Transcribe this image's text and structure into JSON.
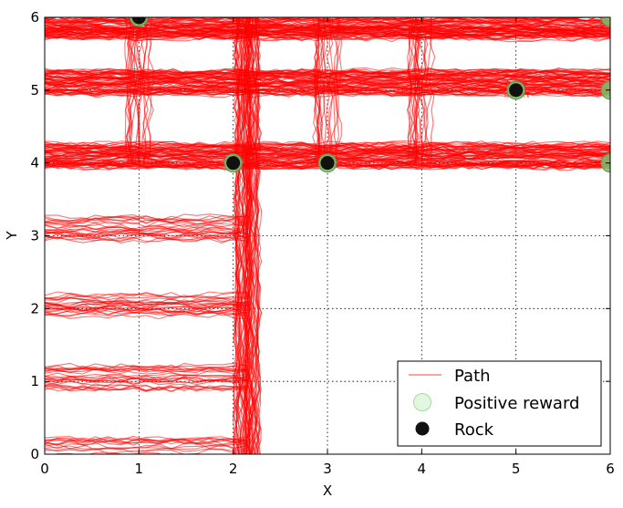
{
  "chart_data": {
    "type": "scatter",
    "title": "",
    "xlabel": "X",
    "ylabel": "Y",
    "xlim": [
      0,
      6
    ],
    "ylim": [
      0,
      6
    ],
    "xticks": [
      "0",
      "1",
      "2",
      "3",
      "4",
      "5",
      "6"
    ],
    "yticks": [
      "0",
      "1",
      "2",
      "3",
      "4",
      "5",
      "6"
    ],
    "grid": true,
    "legend_position": "bottom-right",
    "series": [
      {
        "name": "Path",
        "kind": "line",
        "color": "#ff0000",
        "segments": [
          [
            [
              0,
              5.85
            ],
            [
              6,
              5.85
            ]
          ],
          [
            [
              0,
              5.1
            ],
            [
              6,
              5.1
            ]
          ],
          [
            [
              0,
              4.1
            ],
            [
              6,
              4.1
            ]
          ],
          [
            [
              0,
              3.1
            ],
            [
              2.15,
              3.1
            ]
          ],
          [
            [
              0,
              2.05
            ],
            [
              2.15,
              2.05
            ]
          ],
          [
            [
              0,
              1.05
            ],
            [
              2.15,
              1.05
            ]
          ],
          [
            [
              0,
              0.05
            ],
            [
              2.15,
              0.05
            ]
          ],
          [
            [
              1.0,
              6
            ],
            [
              1.0,
              4
            ]
          ],
          [
            [
              2.15,
              6
            ],
            [
              2.15,
              0
            ]
          ],
          [
            [
              3.0,
              6
            ],
            [
              3.0,
              4
            ]
          ],
          [
            [
              4.0,
              6
            ],
            [
              4.0,
              4
            ]
          ],
          [
            [
              5.0,
              5.1
            ],
            [
              5.0,
              4.9
            ]
          ]
        ]
      },
      {
        "name": "Positive reward",
        "kind": "marker",
        "color": "#7bbf6a",
        "points": [
          [
            6,
            6
          ],
          [
            6,
            5
          ],
          [
            6,
            4
          ],
          [
            2,
            4
          ],
          [
            3,
            4
          ],
          [
            1,
            6
          ],
          [
            5,
            5
          ]
        ]
      },
      {
        "name": "Rock",
        "kind": "marker",
        "color": "#111111",
        "points": [
          [
            1,
            6
          ],
          [
            2,
            4
          ],
          [
            3,
            4
          ],
          [
            5,
            5
          ]
        ]
      }
    ],
    "legend": [
      {
        "label": "Path"
      },
      {
        "label": "Positive reward"
      },
      {
        "label": "Rock"
      }
    ]
  }
}
